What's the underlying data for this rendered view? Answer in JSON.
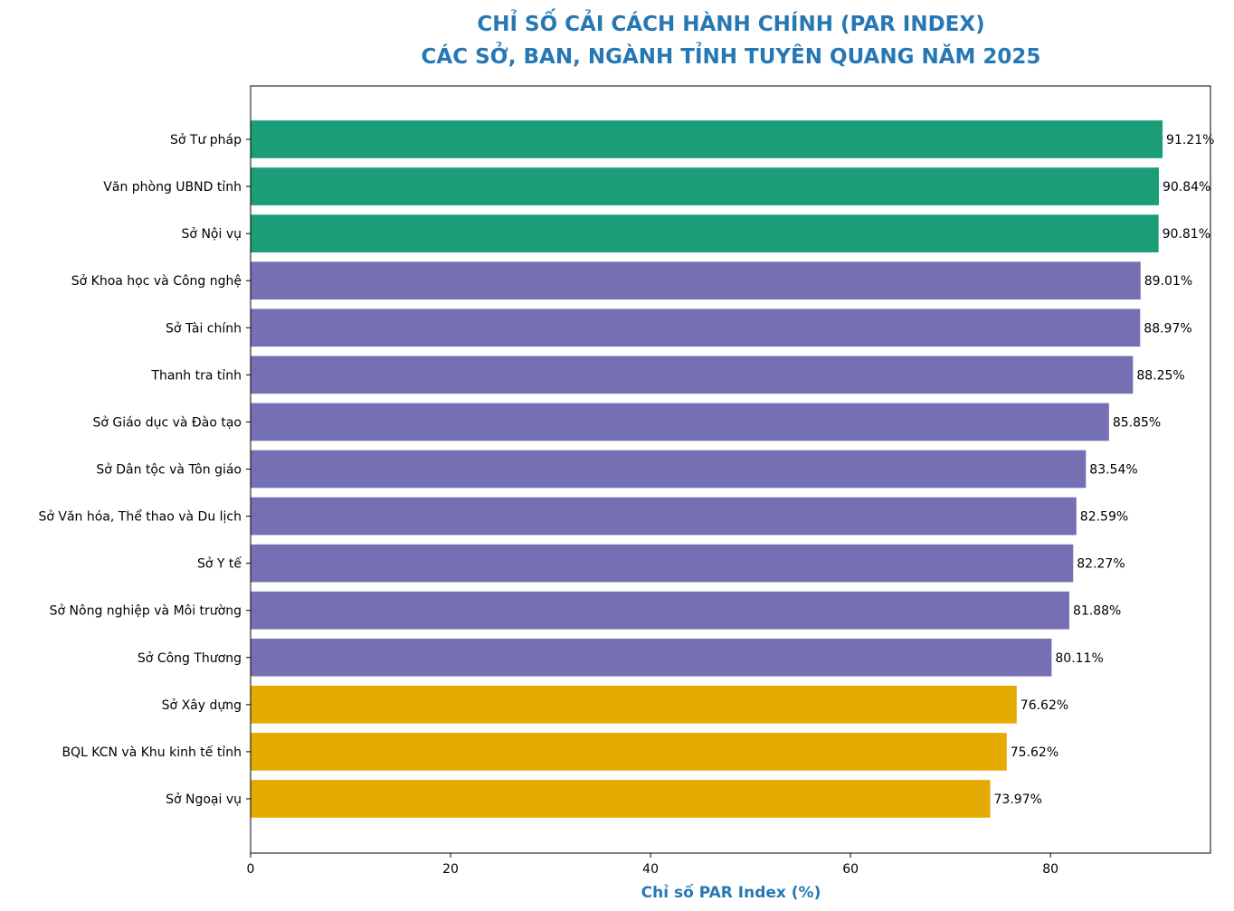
{
  "chart_data": {
    "type": "bar",
    "orientation": "horizontal",
    "title": [
      "CHỈ SỐ CẢI CÁCH HÀNH CHÍNH (PAR INDEX)",
      "CÁC SỞ, BAN, NGÀNH TỈNH TUYÊN QUANG NĂM 2025"
    ],
    "xlabel": "Chỉ số PAR Index (%)",
    "ylabel": "",
    "xlim": [
      0,
      96
    ],
    "xticks": [
      0,
      20,
      40,
      60,
      80
    ],
    "grid": false,
    "categories": [
      "Sở Tư pháp",
      "Văn phòng UBND tỉnh",
      "Sở Nội vụ",
      "Sở Khoa học và Công nghệ",
      "Sở Tài chính",
      "Thanh tra tỉnh",
      "Sở Giáo dục và Đào tạo",
      "Sở Dân tộc và Tôn giáo",
      "Sở Văn hóa, Thể thao và Du lịch",
      "Sở Y tế",
      "Sở Nông nghiệp và Môi trường",
      "Sở Công Thương",
      "Sở Xây dựng",
      "BQL KCN và Khu kinh tế tỉnh",
      "Sở Ngoại vụ"
    ],
    "values": [
      91.21,
      90.84,
      90.81,
      89.01,
      88.97,
      88.25,
      85.85,
      83.54,
      82.59,
      82.27,
      81.88,
      80.11,
      76.62,
      75.62,
      73.97
    ],
    "data_labels": [
      "91.21%",
      "90.84%",
      "90.81%",
      "89.01%",
      "88.97%",
      "88.25%",
      "85.85%",
      "83.54%",
      "82.59%",
      "82.27%",
      "81.88%",
      "80.11%",
      "76.62%",
      "75.62%",
      "73.97%"
    ],
    "bar_colors": [
      "#1b9e77",
      "#1b9e77",
      "#1b9e77",
      "#7570b3",
      "#7570b3",
      "#7570b3",
      "#7570b3",
      "#7570b3",
      "#7570b3",
      "#7570b3",
      "#7570b3",
      "#7570b3",
      "#e6ab02",
      "#e6ab02",
      "#e6ab02"
    ],
    "title_color": "#2678b4"
  }
}
